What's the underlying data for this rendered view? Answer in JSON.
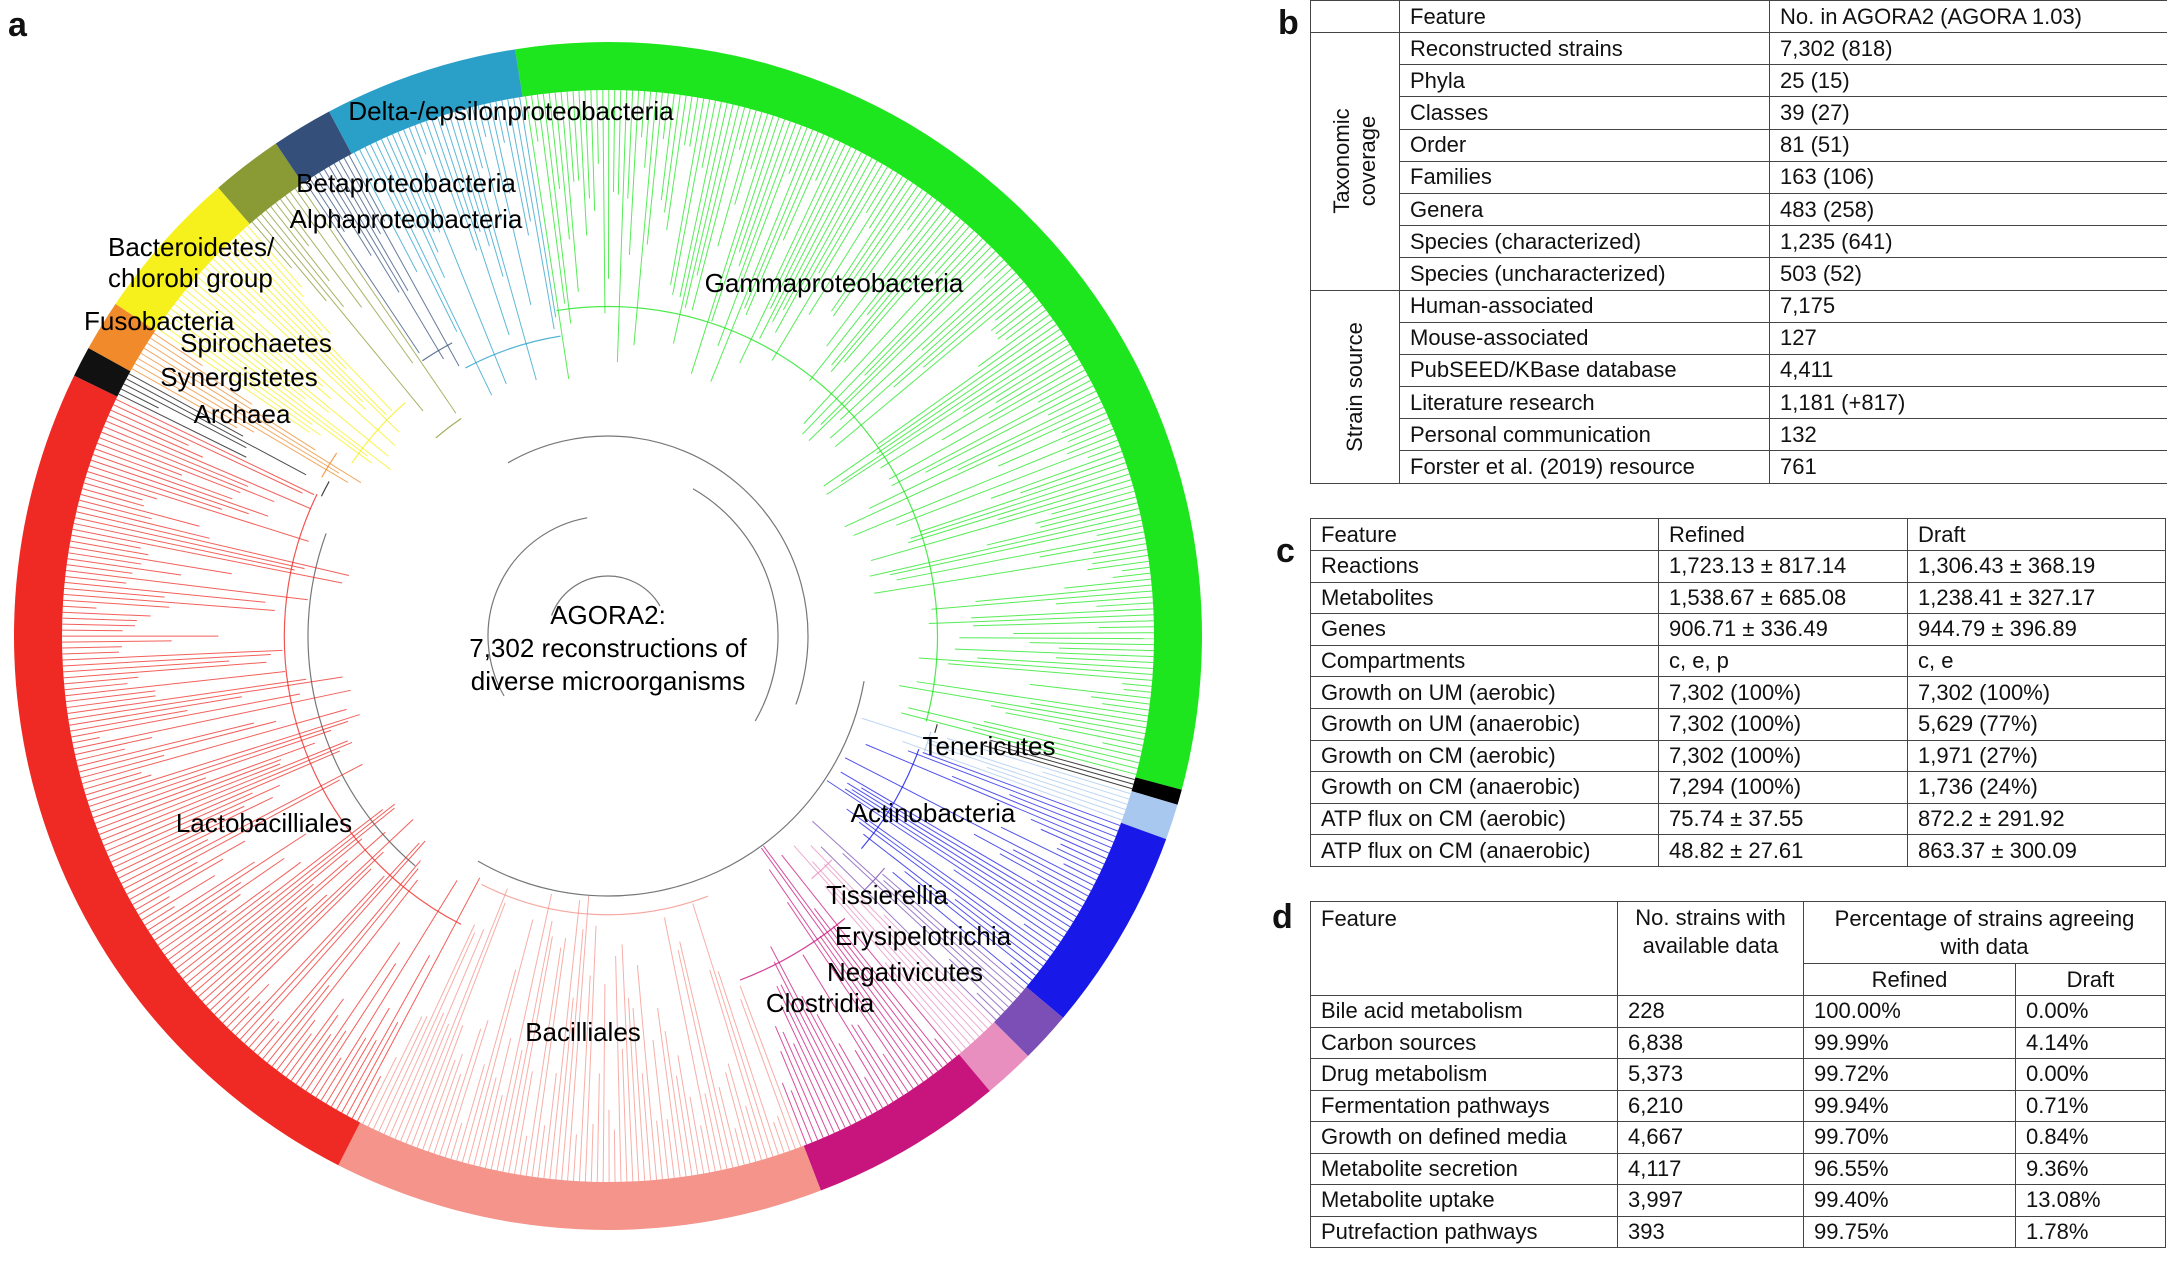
{
  "panel_labels": [
    "a",
    "b",
    "c",
    "d"
  ],
  "tree": {
    "center_label": [
      "AGORA2:",
      "7,302 reconstructions of",
      "diverse microorganisms"
    ],
    "clade_labels": [
      "Delta-/epsilonproteobacteria",
      "Betaproteobacteria",
      "Alphaproteobacteria",
      "Bacteroidetes/",
      "chlorobi group",
      "Gammaproteobacteria",
      "Fusobacteria",
      "Spirochaetes",
      "Synergistetes",
      "Archaea",
      "Tenericutes",
      "Actinobacteria",
      "Lactobacilliales",
      "Tissierellia",
      "Erysipelotrichia",
      "Negativicutes",
      "Clostridia",
      "Bacilliales"
    ]
  },
  "table_b": {
    "header": [
      "Feature",
      "No. in AGORA2 (AGORA 1.03)"
    ],
    "groups": [
      {
        "name": "Taxonomic coverage",
        "rows": [
          [
            "Reconstructed strains",
            "7,302 (818)"
          ],
          [
            "Phyla",
            "25 (15)"
          ],
          [
            "Classes",
            "39 (27)"
          ],
          [
            "Order",
            "81 (51)"
          ],
          [
            "Families",
            "163 (106)"
          ],
          [
            "Genera",
            "483 (258)"
          ],
          [
            "Species (characterized)",
            "1,235 (641)"
          ],
          [
            "Species (uncharacterized)",
            "503 (52)"
          ]
        ]
      },
      {
        "name": "Strain source",
        "rows": [
          [
            "Human-associated",
            "7,175"
          ],
          [
            "Mouse-associated",
            "127"
          ],
          [
            "PubSEED/KBase database",
            "4,411"
          ],
          [
            "Literature research",
            "1,181 (+817)"
          ],
          [
            "Personal communication",
            "132"
          ],
          [
            "Forster et al. (2019) resource",
            "761"
          ]
        ]
      }
    ]
  },
  "table_c": {
    "header": [
      "Feature",
      "Refined",
      "Draft"
    ],
    "rows": [
      [
        "Reactions",
        "1,723.13 ± 817.14",
        "1,306.43 ± 368.19"
      ],
      [
        "Metabolites",
        "1,538.67 ± 685.08",
        "1,238.41 ± 327.17"
      ],
      [
        "Genes",
        "906.71 ± 336.49",
        "944.79 ± 396.89"
      ],
      [
        "Compartments",
        "c, e, p",
        "c, e"
      ],
      [
        "Growth on UM (aerobic)",
        "7,302 (100%)",
        "7,302 (100%)"
      ],
      [
        "Growth on UM (anaerobic)",
        "7,302 (100%)",
        "5,629 (77%)"
      ],
      [
        "Growth on CM (aerobic)",
        "7,302 (100%)",
        "1,971 (27%)"
      ],
      [
        "Growth on CM (anaerobic)",
        "7,294 (100%)",
        "1,736 (24%)"
      ],
      [
        "ATP flux on CM (aerobic)",
        "75.74 ± 37.55",
        "872.2 ± 291.92"
      ],
      [
        "ATP flux on CM (anaerobic)",
        "48.82 ± 27.61",
        "863.37 ± 300.09"
      ]
    ]
  },
  "table_d": {
    "header": {
      "feature": "Feature",
      "strains": "No. strains with available data",
      "percentage": "Percentage of strains agreeing with data",
      "refined": "Refined",
      "draft": "Draft"
    },
    "rows": [
      [
        "Bile acid metabolism",
        "228",
        "100.00%",
        "0.00%"
      ],
      [
        "Carbon sources",
        "6,838",
        "99.99%",
        "4.14%"
      ],
      [
        "Drug metabolism",
        "5,373",
        "99.72%",
        "0.00%"
      ],
      [
        "Fermentation pathways",
        "6,210",
        "99.94%",
        "0.71%"
      ],
      [
        "Growth on defined media",
        "4,667",
        "99.70%",
        "0.84%"
      ],
      [
        "Metabolite secretion",
        "4,117",
        "96.55%",
        "9.36%"
      ],
      [
        "Metabolite uptake",
        "3,997",
        "99.40%",
        "13.08%"
      ],
      [
        "Putrefaction pathways",
        "393",
        "99.75%",
        "1.78%"
      ]
    ]
  }
}
